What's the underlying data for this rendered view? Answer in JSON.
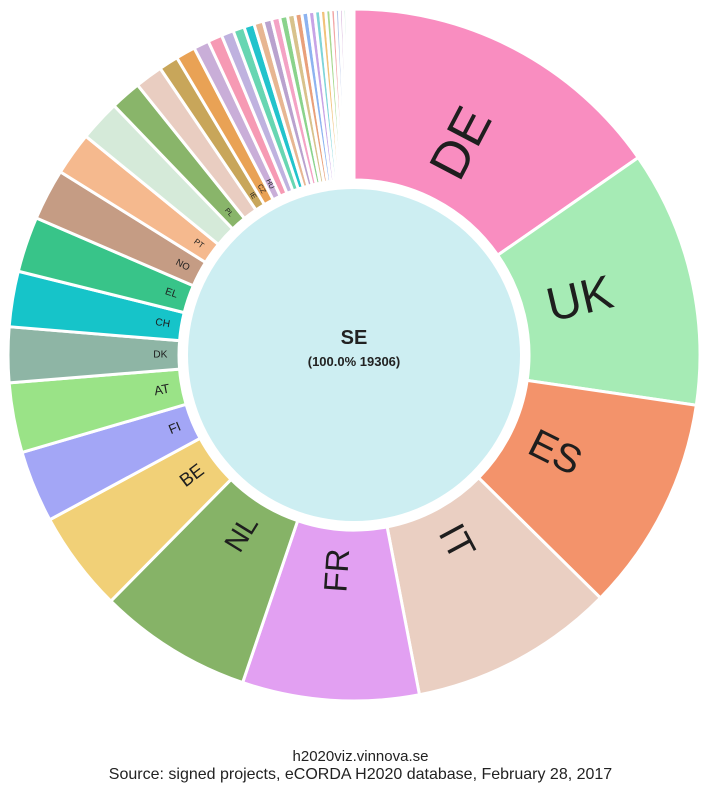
{
  "chart_data": {
    "type": "pie",
    "style": "donut",
    "center": {
      "label": "SE",
      "sublabel": "(100.0% 19306)",
      "color": "#cdeef2"
    },
    "slices": [
      {
        "label": "DE",
        "value": 16.0,
        "color": "#f98dc0"
      },
      {
        "label": "UK",
        "value": 12.5,
        "color": "#a6ebb5"
      },
      {
        "label": "ES",
        "value": 10.5,
        "color": "#f3936b"
      },
      {
        "label": "IT",
        "value": 10.0,
        "color": "#eacfc2"
      },
      {
        "label": "FR",
        "value": 8.6,
        "color": "#e2a0f2"
      },
      {
        "label": "NL",
        "value": 7.5,
        "color": "#86b367"
      },
      {
        "label": "BE",
        "value": 4.9,
        "color": "#f1d077"
      },
      {
        "label": "FI",
        "value": 3.5,
        "color": "#a3a6f6"
      },
      {
        "label": "AT",
        "value": 3.4,
        "color": "#9ae387"
      },
      {
        "label": "DK",
        "value": 2.7,
        "color": "#8eb5a5"
      },
      {
        "label": "CH",
        "value": 2.7,
        "color": "#16c4c9"
      },
      {
        "label": "EL",
        "value": 2.7,
        "color": "#38c489"
      },
      {
        "label": "NO",
        "value": 2.5,
        "color": "#c59c84"
      },
      {
        "label": "PT",
        "value": 2.1,
        "color": "#f5b98e"
      },
      {
        "label": "",
        "value": 2.0,
        "color": "#d5ead9"
      },
      {
        "label": "PL",
        "value": 1.5,
        "color": "#89b56a"
      },
      {
        "label": "",
        "value": 1.35,
        "color": "#e9cdc1"
      },
      {
        "label": "IE",
        "value": 0.95,
        "color": "#c8a65a"
      },
      {
        "label": "CZ",
        "value": 0.95,
        "color": "#e9a255"
      },
      {
        "label": "HU",
        "value": 0.75,
        "color": "#c9aed8"
      },
      {
        "label": "",
        "value": 0.7,
        "color": "#f69ab4"
      },
      {
        "label": "",
        "value": 0.6,
        "color": "#bfb2df"
      },
      {
        "label": "",
        "value": 0.55,
        "color": "#67d6b2"
      },
      {
        "label": "",
        "value": 0.5,
        "color": "#22c3cc"
      },
      {
        "label": "",
        "value": 0.45,
        "color": "#e7b692"
      },
      {
        "label": "",
        "value": 0.42,
        "color": "#b9a2ce"
      },
      {
        "label": "",
        "value": 0.4,
        "color": "#f4a3c5"
      },
      {
        "label": "",
        "value": 0.38,
        "color": "#8ad38c"
      },
      {
        "label": "",
        "value": 0.36,
        "color": "#d8c28c"
      },
      {
        "label": "",
        "value": 0.34,
        "color": "#e9a07a"
      },
      {
        "label": "",
        "value": 0.32,
        "color": "#8db3f0"
      },
      {
        "label": "",
        "value": 0.3,
        "color": "#c7a4e6"
      },
      {
        "label": "",
        "value": 0.28,
        "color": "#7fd4d8"
      },
      {
        "label": "",
        "value": 0.26,
        "color": "#f1c27a"
      },
      {
        "label": "",
        "value": 0.24,
        "color": "#a8d88f"
      },
      {
        "label": "",
        "value": 0.22,
        "color": "#f2a6a6"
      },
      {
        "label": "",
        "value": 0.2,
        "color": "#b5c4e8"
      },
      {
        "label": "",
        "value": 0.18,
        "color": "#d6b3d9"
      },
      {
        "label": "",
        "value": 0.16,
        "color": "#9fd9c0"
      },
      {
        "label": "",
        "value": 0.14,
        "color": "#e8d39c"
      },
      {
        "label": "",
        "value": 0.12,
        "color": "#c8c8c8"
      },
      {
        "label": "",
        "value": 0.1,
        "color": "#a9a9a9"
      }
    ]
  },
  "footer": {
    "site": "h2020viz.vinnova.se",
    "source": "Source: signed projects, eCORDA H2020 database, February 28, 2017"
  }
}
